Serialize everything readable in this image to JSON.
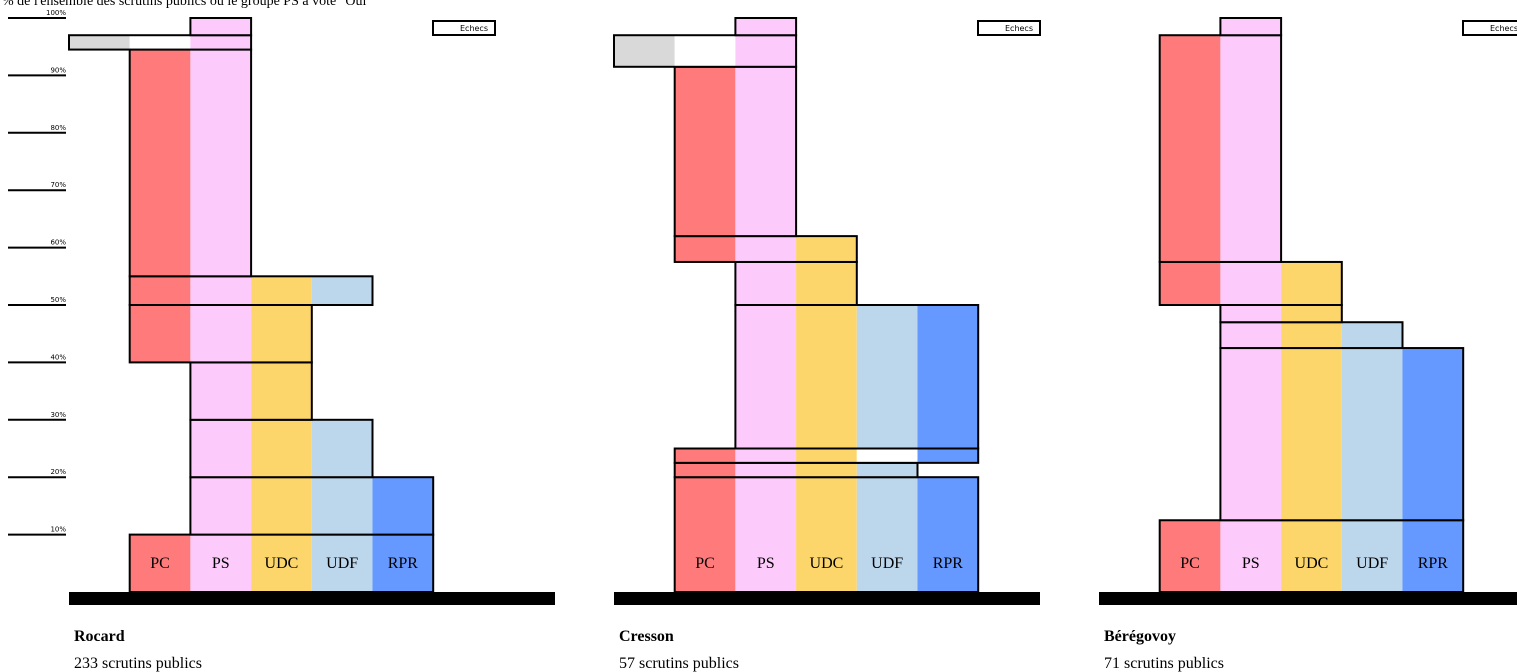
{
  "title": "% de l'ensemble des scrutins publics où le groupe PS a voté \"Oui\"",
  "parties": [
    {
      "name": "Echecs",
      "color": "#d9d9d9"
    },
    {
      "name": "PC",
      "color": "#ff7b7b"
    },
    {
      "name": "PS",
      "color": "#fccbfc"
    },
    {
      "name": "UDC",
      "color": "#fcd66a"
    },
    {
      "name": "UDF",
      "color": "#bcd6ec"
    },
    {
      "name": "RPR",
      "color": "#6699ff"
    }
  ],
  "chart_data": [
    {
      "type": "bar",
      "title": "Rocard",
      "subtitle": "233 scrutins publics",
      "ylim": [
        0,
        100
      ],
      "yticks": [
        {
          "value": 10,
          "label": "10%"
        },
        {
          "value": 20,
          "label": "20%"
        },
        {
          "value": 30,
          "label": "30%"
        },
        {
          "value": 40,
          "label": "40%"
        },
        {
          "value": 50,
          "label": "50%"
        },
        {
          "value": 60,
          "label": "60%"
        },
        {
          "value": 70,
          "label": "70%"
        },
        {
          "value": 80,
          "label": "80%"
        },
        {
          "value": 90,
          "label": "90%"
        },
        {
          "value": 100,
          "label": "100%"
        }
      ],
      "bands": [
        {
          "parties": [
            "PC",
            "PS",
            "UDC",
            "UDF",
            "RPR"
          ],
          "value": 10
        },
        {
          "parties": [
            "PS",
            "UDC",
            "UDF",
            "RPR"
          ],
          "value": 10
        },
        {
          "parties": [
            "PS",
            "UDC",
            "UDF"
          ],
          "value": 10
        },
        {
          "parties": [
            "PS",
            "UDC"
          ],
          "value": 10
        },
        {
          "parties": [
            "PC",
            "PS",
            "UDC"
          ],
          "value": 10
        },
        {
          "parties": [
            "PC",
            "PS",
            "UDC",
            "UDF"
          ],
          "value": 5
        },
        {
          "parties": [
            "PC",
            "PS"
          ],
          "value": 39.5
        },
        {
          "parties": [
            "Echecs",
            "PS"
          ],
          "value": 2.5
        },
        {
          "parties": [
            "PS"
          ],
          "value": 3
        }
      ]
    },
    {
      "type": "bar",
      "title": "Cresson",
      "subtitle": "57 scrutins publics",
      "ylim": [
        0,
        100
      ],
      "bands": [
        {
          "parties": [
            "PC",
            "PS",
            "UDC",
            "UDF",
            "RPR"
          ],
          "value": 20
        },
        {
          "parties": [
            "PC",
            "PS",
            "UDC",
            "UDF"
          ],
          "value": 2.5
        },
        {
          "parties": [
            "PC",
            "PS",
            "UDC",
            "RPR"
          ],
          "value": 2.5
        },
        {
          "parties": [
            "PS",
            "UDC",
            "UDF",
            "RPR"
          ],
          "value": 25
        },
        {
          "parties": [
            "PS",
            "UDC"
          ],
          "value": 7.5
        },
        {
          "parties": [
            "PC",
            "PS",
            "UDC"
          ],
          "value": 4.5
        },
        {
          "parties": [
            "PC",
            "PS"
          ],
          "value": 29.5
        },
        {
          "parties": [
            "Echecs",
            "PS"
          ],
          "value": 5.5
        },
        {
          "parties": [
            "PS"
          ],
          "value": 3
        }
      ]
    },
    {
      "type": "bar",
      "title": "Bérégovoy",
      "subtitle": "71 scrutins publics",
      "ylim": [
        0,
        100
      ],
      "bands": [
        {
          "parties": [
            "PC",
            "PS",
            "UDC",
            "UDF",
            "RPR"
          ],
          "value": 12.5
        },
        {
          "parties": [
            "PS",
            "UDC",
            "UDF",
            "RPR"
          ],
          "value": 30
        },
        {
          "parties": [
            "PS",
            "UDC",
            "UDF"
          ],
          "value": 4.5
        },
        {
          "parties": [
            "PS",
            "UDC"
          ],
          "value": 3
        },
        {
          "parties": [
            "PC",
            "PS",
            "UDC"
          ],
          "value": 7.5
        },
        {
          "parties": [
            "PC",
            "PS"
          ],
          "value": 39.5
        },
        {
          "parties": [
            "PS"
          ],
          "value": 3
        }
      ]
    }
  ]
}
